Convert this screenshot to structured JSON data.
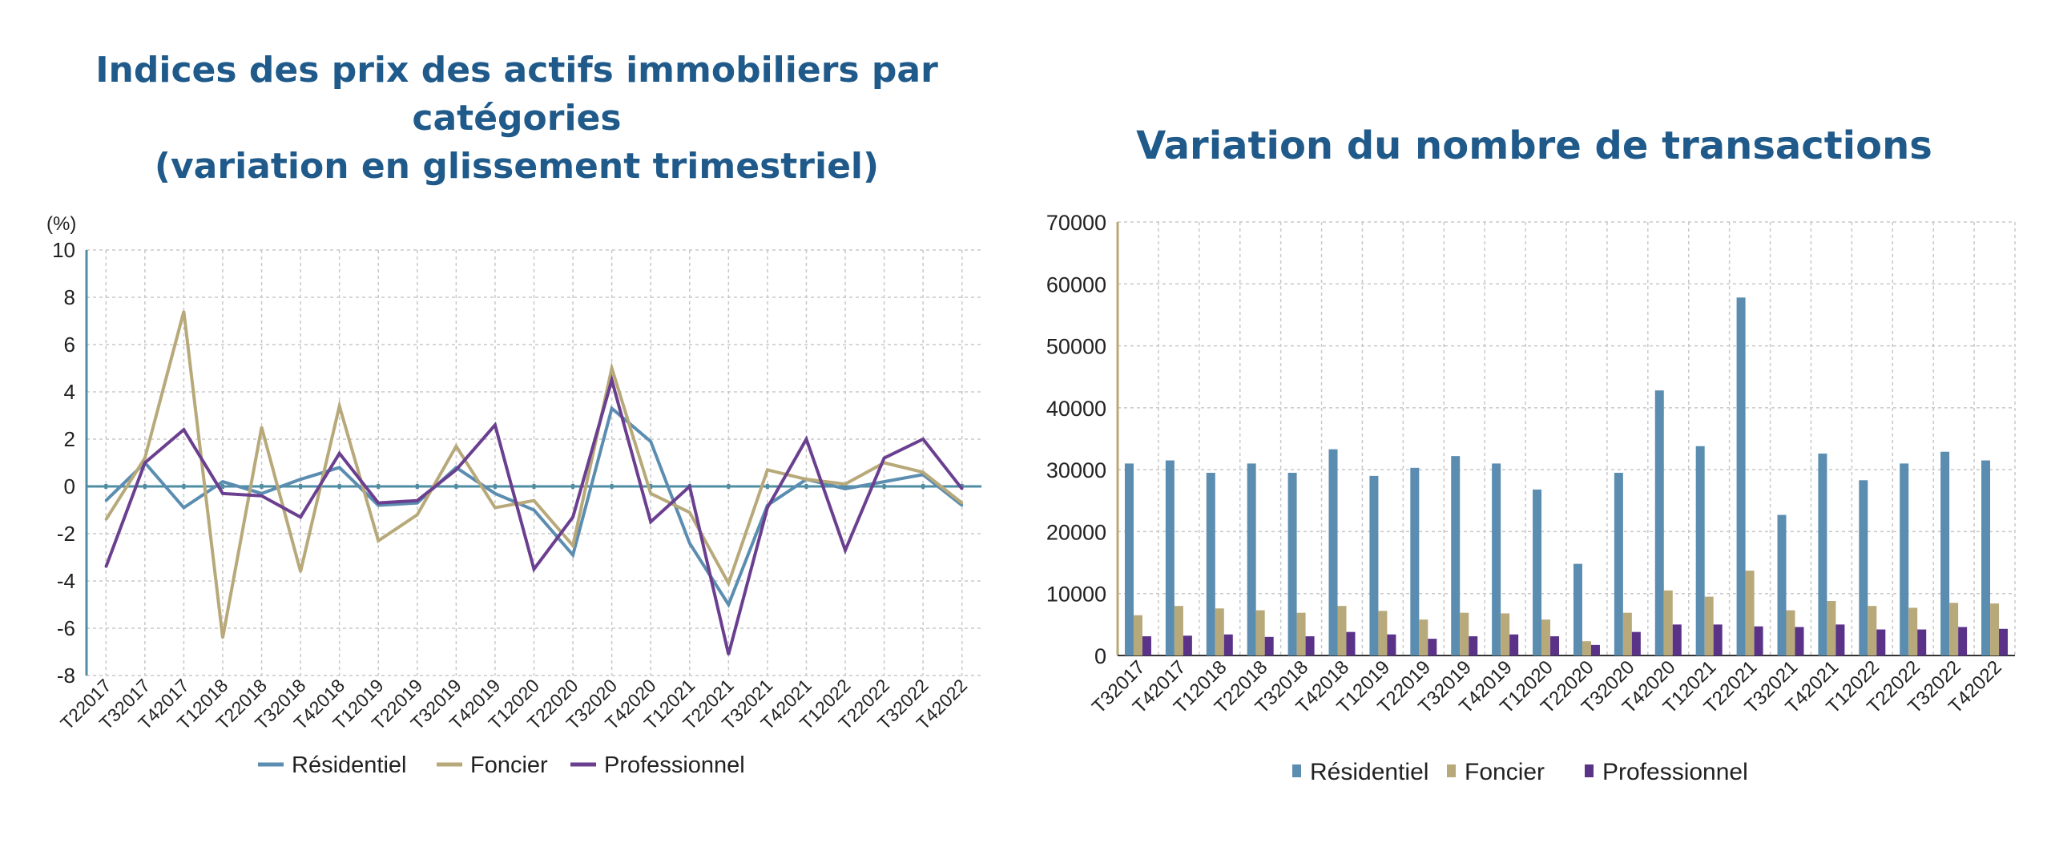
{
  "chart_data": [
    {
      "type": "line",
      "title_lines": [
        "Indices des prix des actifs immobiliers par",
        "catégories",
        "(variation en glissement trimestriel)"
      ],
      "ylabel": "(%)",
      "xlabel": "",
      "ylim": [
        -8,
        10
      ],
      "yticks": [
        -8,
        -6,
        -4,
        -2,
        0,
        2,
        4,
        6,
        8,
        10
      ],
      "grid": true,
      "legend_position": "bottom",
      "x": [
        "T22017",
        "T32017",
        "T42017",
        "T12018",
        "T22018",
        "T32018",
        "T42018",
        "T12019",
        "T22019",
        "T32019",
        "T42019",
        "T12020",
        "T22020",
        "T32020",
        "T42020",
        "T12021",
        "T22021",
        "T32021",
        "T42021",
        "T12022",
        "T22022",
        "T32022",
        "T42022"
      ],
      "series": [
        {
          "name": "Résidentiel",
          "color": "#5b8db0",
          "values": [
            -0.6,
            1.0,
            -0.9,
            0.2,
            -0.3,
            0.3,
            0.8,
            -0.8,
            -0.7,
            0.8,
            -0.3,
            -1.0,
            -2.9,
            3.3,
            1.9,
            -2.4,
            -5.0,
            -0.8,
            0.3,
            -0.1,
            0.2,
            0.5,
            -0.8
          ]
        },
        {
          "name": "Foncier",
          "color": "#b8a97a",
          "values": [
            -1.4,
            1.2,
            7.4,
            -6.4,
            2.5,
            -3.6,
            3.4,
            -2.3,
            -1.2,
            1.7,
            -0.9,
            -0.6,
            -2.5,
            5.0,
            -0.3,
            -1.1,
            -4.1,
            0.7,
            0.3,
            0.1,
            1.0,
            0.6,
            -0.7
          ]
        },
        {
          "name": "Professionnel",
          "color": "#6b3f8f",
          "values": [
            -3.4,
            1.0,
            2.4,
            -0.3,
            -0.4,
            -1.3,
            1.4,
            -0.7,
            -0.6,
            0.7,
            2.6,
            -3.5,
            -1.3,
            4.5,
            -1.5,
            0.0,
            -7.1,
            -0.9,
            2.0,
            -2.7,
            1.2,
            2.0,
            -0.1
          ]
        }
      ]
    },
    {
      "type": "bar",
      "title": "Variation du nombre de transactions",
      "xlabel": "",
      "ylabel": "",
      "ylim": [
        0,
        70000
      ],
      "yticks": [
        0,
        10000,
        20000,
        30000,
        40000,
        50000,
        60000,
        70000
      ],
      "grid": true,
      "legend_position": "bottom",
      "categories": [
        "T32017",
        "T42017",
        "T12018",
        "T22018",
        "T32018",
        "T42018",
        "T12019",
        "T22019",
        "T32019",
        "T42019",
        "T12020",
        "T22020",
        "T32020",
        "T42020",
        "T12021",
        "T22021",
        "T32021",
        "T42021",
        "T12022",
        "T22022",
        "T32022",
        "T42022"
      ],
      "series": [
        {
          "name": "Résidentiel",
          "color": "#5b8db0",
          "values": [
            31000,
            31500,
            29500,
            31000,
            29500,
            33300,
            29000,
            30300,
            32200,
            31000,
            26800,
            14800,
            29500,
            42800,
            33800,
            57800,
            22700,
            32600,
            28300,
            31000,
            32900,
            31500
          ]
        },
        {
          "name": "Foncier",
          "color": "#b8a97a",
          "values": [
            6500,
            8000,
            7600,
            7300,
            6900,
            8000,
            7200,
            5800,
            6900,
            6800,
            5800,
            2300,
            6900,
            10500,
            9500,
            13700,
            7300,
            8800,
            8000,
            7700,
            8500,
            8400
          ]
        },
        {
          "name": "Professionnel",
          "color": "#5a3288",
          "values": [
            3100,
            3200,
            3400,
            3000,
            3100,
            3800,
            3400,
            2700,
            3100,
            3400,
            3100,
            1700,
            3800,
            5000,
            5000,
            4700,
            4600,
            5000,
            4200,
            4200,
            4600,
            4300
          ]
        }
      ]
    }
  ]
}
